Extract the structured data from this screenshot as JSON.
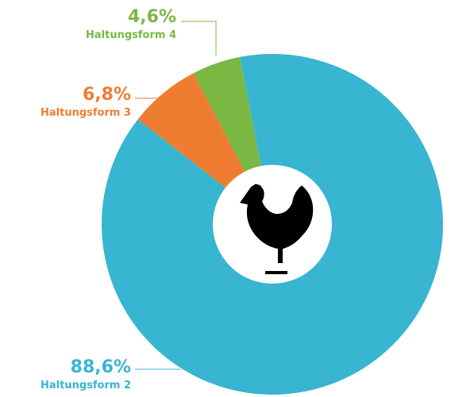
{
  "chart_data": {
    "type": "pie",
    "donut": true,
    "categories": [
      "Haltungsform 3",
      "Haltungsform 4",
      "Haltungsform 2"
    ],
    "values": [
      6.8,
      4.6,
      88.6
    ],
    "value_labels": [
      "6,8%",
      "4,6%",
      "88,6%"
    ],
    "colors": [
      "#ee7d31",
      "#7ab843",
      "#38b5d0"
    ]
  }
}
